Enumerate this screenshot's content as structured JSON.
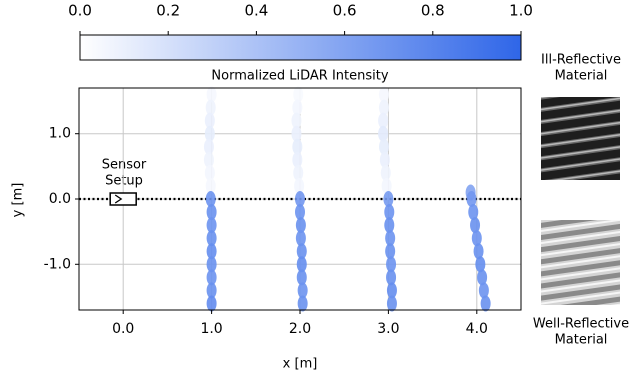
{
  "chart_data": {
    "type": "scatter",
    "colorbar_label": "Normalized LiDAR Intensity",
    "clim": [
      0,
      1
    ],
    "colorbar_ticks": [
      {
        "value": 0,
        "label": "0.0"
      },
      {
        "value": 0.2,
        "label": "0.2"
      },
      {
        "value": 0.4,
        "label": "0.4"
      },
      {
        "value": 0.6,
        "label": "0.6"
      },
      {
        "value": 0.8,
        "label": "0.8"
      },
      {
        "value": 1,
        "label": "1.0"
      }
    ],
    "colormap": [
      "#ffffff",
      "#2f66e8"
    ],
    "x_label": "x [m]",
    "y_label": "y [m]",
    "xlim": [
      -0.5,
      4.5
    ],
    "ylim": [
      -1.7,
      1.7
    ],
    "xticks": [
      {
        "value": 0,
        "label": "0.0"
      },
      {
        "value": 1,
        "label": "1.0"
      },
      {
        "value": 2,
        "label": "2.0"
      },
      {
        "value": 3,
        "label": "3.0"
      },
      {
        "value": 4,
        "label": "4.0"
      }
    ],
    "yticks": [
      {
        "value": -1,
        "label": "-1.0"
      },
      {
        "value": 0,
        "label": "0.0"
      },
      {
        "value": 1,
        "label": "1.0"
      }
    ],
    "grid": true,
    "annotation": [
      "Sensor",
      "Setup"
    ],
    "materials": [
      {
        "label": [
          "Ill-Reflective",
          "Material"
        ]
      },
      {
        "label": [
          "Well-Reflective",
          "Material"
        ]
      }
    ],
    "strips": [
      {
        "x": [
          1.0,
          0.99,
          0.98,
          0.98,
          0.97,
          0.97,
          0.98,
          0.99,
          0.99,
          1.0,
          1.0,
          1.0,
          1.0,
          1.0,
          1.0,
          1.0,
          1.0
        ],
        "y": [
          1.6,
          1.4,
          1.2,
          1.0,
          0.8,
          0.6,
          0.4,
          0.2,
          0.0,
          -0.2,
          -0.4,
          -0.6,
          -0.8,
          -1.0,
          -1.2,
          -1.4,
          -1.6
        ],
        "intensity": [
          0.05,
          0.08,
          0.1,
          0.12,
          0.1,
          0.08,
          0.06,
          0.05,
          0.7,
          0.72,
          0.7,
          0.72,
          0.74,
          0.72,
          0.7,
          0.72,
          0.75
        ]
      },
      {
        "x": [
          1.98,
          1.97,
          1.96,
          1.96,
          1.97,
          1.97,
          1.98,
          1.99,
          2.0,
          2.0,
          2.01,
          2.01,
          2.02,
          2.02,
          2.02,
          2.03,
          2.03
        ],
        "y": [
          1.6,
          1.4,
          1.2,
          1.0,
          0.8,
          0.6,
          0.4,
          0.2,
          0.0,
          -0.2,
          -0.4,
          -0.6,
          -0.8,
          -1.0,
          -1.2,
          -1.4,
          -1.6
        ],
        "intensity": [
          0.04,
          0.06,
          0.08,
          0.1,
          0.12,
          0.1,
          0.08,
          0.06,
          0.68,
          0.7,
          0.72,
          0.7,
          0.72,
          0.74,
          0.72,
          0.7,
          0.72
        ]
      },
      {
        "x": [
          2.95,
          2.95,
          2.94,
          2.94,
          2.95,
          2.96,
          2.97,
          2.98,
          3.0,
          3.01,
          3.01,
          3.02,
          3.02,
          3.03,
          3.03,
          3.04,
          3.04
        ],
        "y": [
          1.6,
          1.4,
          1.2,
          1.0,
          0.8,
          0.6,
          0.4,
          0.2,
          0.0,
          -0.2,
          -0.4,
          -0.6,
          -0.8,
          -1.0,
          -1.2,
          -1.4,
          -1.6
        ],
        "intensity": [
          0.05,
          0.08,
          0.1,
          0.14,
          0.12,
          0.1,
          0.08,
          0.06,
          0.66,
          0.7,
          0.72,
          0.7,
          0.72,
          0.7,
          0.72,
          0.74,
          0.72
        ]
      },
      {
        "x": [
          3.93,
          3.94,
          3.96,
          3.98,
          4.0,
          4.02,
          4.04,
          4.06,
          4.08,
          4.1
        ],
        "y": [
          0.1,
          0.0,
          -0.2,
          -0.4,
          -0.6,
          -0.8,
          -1.0,
          -1.2,
          -1.4,
          -1.6
        ],
        "intensity": [
          0.6,
          0.68,
          0.7,
          0.72,
          0.7,
          0.72,
          0.74,
          0.72,
          0.7,
          0.72
        ]
      }
    ]
  }
}
